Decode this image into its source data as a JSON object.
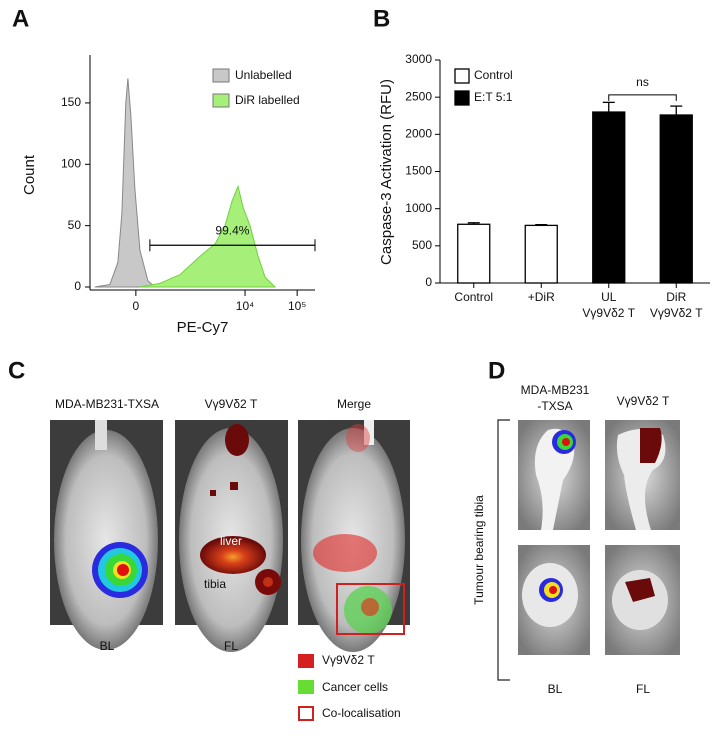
{
  "panel_labels": [
    "A",
    "B",
    "C",
    "D"
  ],
  "chart_data": [
    {
      "type": "area",
      "xlabel": "PE-Cy7",
      "ylabel": "Count",
      "xscale": "biexponential",
      "xlim": [
        -600,
        220000
      ],
      "ylim": [
        0,
        185
      ],
      "xticks": [
        0,
        {
          "value": 10000,
          "label": "10⁴"
        },
        {
          "value": 100000,
          "label": "10⁵"
        }
      ],
      "yticks": [
        0,
        50,
        100,
        150
      ],
      "series": [
        {
          "name": "Unlabelled",
          "color": "#c8c8c8",
          "x": [
            -480,
            -229,
            -142,
            -106,
            -74,
            -58,
            -36,
            -7,
            29,
            90,
            152
          ],
          "values": [
            0,
            2,
            20,
            60,
            150,
            170,
            140,
            80,
            30,
            5,
            0
          ]
        },
        {
          "name": "DiR labelled",
          "color": "#a6f07a",
          "x": [
            29,
            206,
            552,
            1362,
            2653,
            4131,
            5630,
            7342,
            9161,
            12478,
            17790,
            24263,
            37674
          ],
          "values": [
            0,
            3,
            10,
            25,
            35,
            50,
            70,
            82,
            65,
            50,
            25,
            8,
            0
          ]
        }
      ],
      "annotations": [
        {
          "text": "99.4%",
          "x": [
            106,
            220000
          ],
          "y": 34
        }
      ]
    },
    {
      "type": "bar",
      "ylabel": "Caspase-3 Activation (RFU)",
      "categories": [
        [
          "Control"
        ],
        [
          "+DiR"
        ],
        [
          "UL",
          "Vγ9Vδ2 T"
        ],
        [
          "DiR",
          "Vγ9Vδ2 T"
        ]
      ],
      "ylim": [
        0,
        3000
      ],
      "yticks": [
        0,
        500,
        1000,
        1500,
        2000,
        2500,
        3000
      ],
      "series": [
        {
          "name": "Control",
          "color": "#ffffff",
          "values": [
            790,
            775,
            null,
            null
          ],
          "error": [
            20,
            10,
            null,
            null
          ]
        },
        {
          "name": "E:T 5:1",
          "color": "#000000",
          "values": [
            null,
            null,
            2300,
            2260
          ],
          "error": [
            null,
            null,
            130,
            120
          ]
        }
      ],
      "annotations": [
        {
          "text": "ns",
          "y": 2530
        }
      ]
    }
  ],
  "panel_c": {
    "titles": [
      "MDA-MB231-TXSA",
      "Vγ9Vδ2 T",
      "Merge"
    ],
    "organs": [
      "liver",
      "tibia"
    ],
    "footers": [
      "BL",
      "FL"
    ],
    "legend": [
      "Vγ9Vδ2 T",
      "Cancer cells",
      "Co-localisation"
    ]
  },
  "panel_d": {
    "titles": [
      [
        "MDA-MB231",
        "-TXSA"
      ],
      "Vγ9Vδ2 T"
    ],
    "side_label": "Tumour bearing tibia",
    "footers": [
      "BL",
      "FL"
    ]
  }
}
